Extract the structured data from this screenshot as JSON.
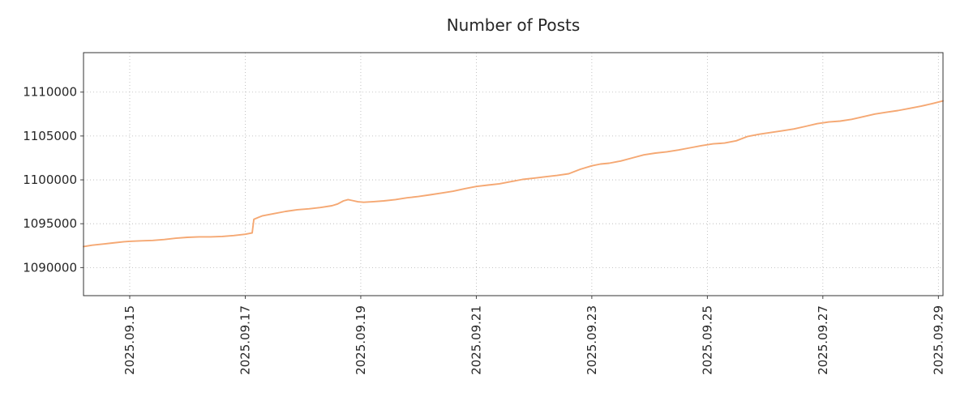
{
  "chart_data": {
    "type": "line",
    "title": "Number of Posts",
    "xlabel": "",
    "ylabel": "",
    "grid": true,
    "legend": "none",
    "line_color": "#f5a873",
    "grid_color": "#b3b3b3",
    "spine_color": "#333333",
    "text_color": "#262626",
    "xlim": [
      14.2,
      29.08
    ],
    "ylim": [
      1086800,
      1114500
    ],
    "x_tick_positions": [
      15,
      17,
      19,
      21,
      23,
      25,
      27,
      29
    ],
    "x_tick_labels": [
      "2025.09.15",
      "2025.09.17",
      "2025.09.19",
      "2025.09.21",
      "2025.09.23",
      "2025.09.25",
      "2025.09.27",
      "2025.09.29"
    ],
    "y_ticks": [
      1090000,
      1095000,
      1100000,
      1105000,
      1110000
    ],
    "y_tick_labels": [
      "1090000",
      "1095000",
      "1100000",
      "1105000",
      "1110000"
    ],
    "series": [
      {
        "name": "posts",
        "x": [
          14.2,
          14.35,
          14.5,
          14.7,
          14.9,
          15.0,
          15.2,
          15.4,
          15.6,
          15.8,
          16.0,
          16.2,
          16.4,
          16.6,
          16.8,
          17.0,
          17.08,
          17.12,
          17.15,
          17.22,
          17.3,
          17.5,
          17.7,
          17.9,
          18.1,
          18.3,
          18.5,
          18.6,
          18.7,
          18.78,
          18.85,
          18.95,
          19.05,
          19.2,
          19.4,
          19.6,
          19.8,
          20.0,
          20.2,
          20.4,
          20.6,
          20.8,
          21.0,
          21.2,
          21.4,
          21.6,
          21.8,
          22.0,
          22.2,
          22.4,
          22.6,
          22.8,
          23.0,
          23.15,
          23.3,
          23.5,
          23.7,
          23.9,
          24.1,
          24.3,
          24.5,
          24.7,
          24.9,
          25.1,
          25.3,
          25.5,
          25.7,
          25.9,
          26.1,
          26.3,
          26.5,
          26.7,
          26.9,
          27.1,
          27.3,
          27.5,
          27.7,
          27.9,
          28.1,
          28.3,
          28.5,
          28.7,
          28.9,
          29.08
        ],
        "y": [
          1092400,
          1092550,
          1092650,
          1092800,
          1092950,
          1093000,
          1093050,
          1093100,
          1093200,
          1093350,
          1093450,
          1093500,
          1093500,
          1093550,
          1093650,
          1093800,
          1093900,
          1093950,
          1095500,
          1095700,
          1095900,
          1096150,
          1096400,
          1096600,
          1096700,
          1096850,
          1097050,
          1097250,
          1097600,
          1097750,
          1097650,
          1097500,
          1097450,
          1097500,
          1097600,
          1097750,
          1097950,
          1098100,
          1098300,
          1098500,
          1098700,
          1099000,
          1099250,
          1099400,
          1099550,
          1099800,
          1100050,
          1100200,
          1100350,
          1100500,
          1100700,
          1101200,
          1101600,
          1101800,
          1101900,
          1102150,
          1102500,
          1102850,
          1103050,
          1103200,
          1103400,
          1103650,
          1103900,
          1104100,
          1104200,
          1104450,
          1104950,
          1105200,
          1105400,
          1105600,
          1105800,
          1106100,
          1106400,
          1106600,
          1106700,
          1106900,
          1107200,
          1107500,
          1107700,
          1107900,
          1108150,
          1108400,
          1108700,
          1109000
        ]
      }
    ]
  }
}
